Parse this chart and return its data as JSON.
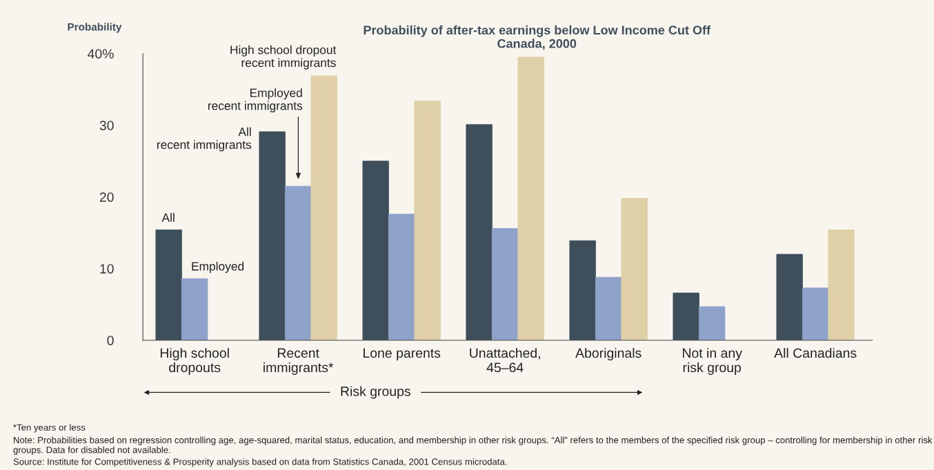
{
  "chart_data": {
    "type": "bar",
    "title": "Probability of after-tax earnings below Low Income Cut Off\nCanada, 2000",
    "ylabel": "Probability",
    "xlabel": "Risk groups",
    "categories": [
      "High school\ndropouts",
      "Recent\nimmigrants*",
      "Lone parents",
      "Unattached,\n45–64",
      "Aboriginals",
      "Not in any\nrisk group",
      "All Canadians"
    ],
    "series": [
      {
        "color": "#3e4f5b",
        "values": [
          15.4,
          29.1,
          25.0,
          30.1,
          13.9,
          6.6,
          12.0
        ]
      },
      {
        "color": "#8fa2ca",
        "values": [
          8.6,
          21.5,
          17.6,
          15.6,
          8.8,
          4.7,
          7.3
        ]
      },
      {
        "color": "#e0d0a7",
        "values": [
          null,
          36.9,
          33.4,
          39.5,
          19.8,
          0,
          15.4
        ]
      }
    ],
    "ylim": [
      0,
      40
    ],
    "yticks": [
      0,
      10,
      20,
      30,
      {
        "value": 40,
        "label": "40%"
      }
    ],
    "grid": false,
    "legend": false,
    "annotations": [
      "All",
      "Employed",
      "All\nrecent immigrants",
      "Employed\nrecent immigrants",
      "High school dropout\nrecent immigrants",
      "*Ten years or less",
      "Note: Probabilities based on regression controlling age, age-squared, marital status, education, and membership in other risk groups. “All” refers to the members of the specified risk group – controlling for membership in other risk groups. Data for disabled not available.",
      "Source: Institute for Competitiveness & Prosperity analysis based on data from Statistics Canada, 2001 Census microdata."
    ]
  }
}
